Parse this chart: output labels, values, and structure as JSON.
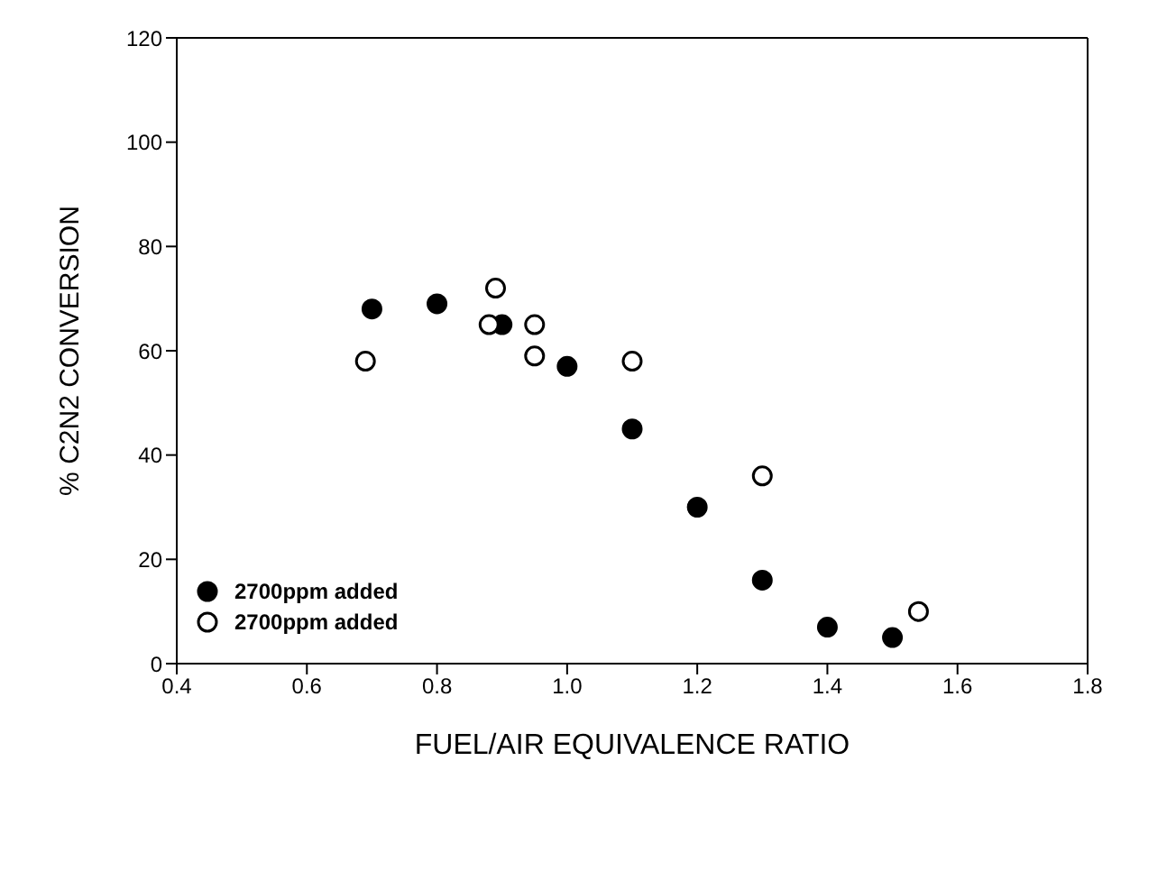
{
  "chart_data": {
    "type": "scatter",
    "xlabel": "FUEL/AIR EQUIVALENCE RATIO",
    "ylabel": "% C2N2 CONVERSION",
    "xlim": [
      0.4,
      1.8
    ],
    "xticks": [
      0.4,
      0.6,
      0.8,
      {
        "value": 1,
        "label": "1.0"
      },
      1.2,
      1.4,
      1.6,
      1.8
    ],
    "ylim": [
      0,
      120
    ],
    "yticks": [
      0,
      20,
      40,
      60,
      80,
      100,
      120
    ],
    "grid": false,
    "legend": "bottom left",
    "marker": "circle",
    "series": [
      {
        "name": "2700ppm added",
        "color": "#000000",
        "x": [
          0.7,
          0.8,
          0.9,
          1.0,
          1.1,
          1.2,
          1.3,
          1.4,
          1.5
        ],
        "values": [
          68,
          69,
          65,
          57,
          45,
          30,
          16,
          7,
          5
        ]
      },
      {
        "name": "2700ppm added",
        "color": "#ffffff",
        "x": [
          0.69,
          0.88,
          0.89,
          0.95,
          0.95,
          1.1,
          1.3,
          1.54
        ],
        "values": [
          58,
          65,
          72,
          65,
          59,
          58,
          36,
          10
        ]
      }
    ]
  }
}
